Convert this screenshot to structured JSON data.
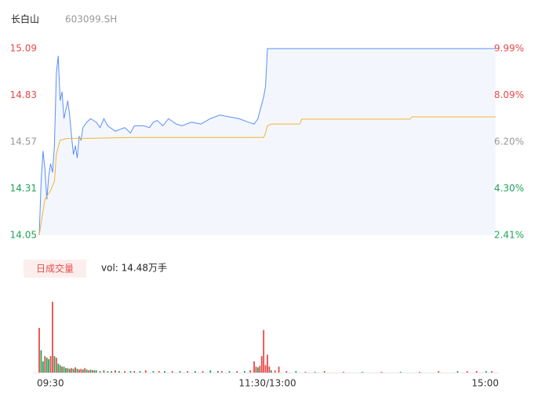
{
  "header": {
    "title": "长白山",
    "code": "603099.SH"
  },
  "chart_data": [
    {
      "type": "line",
      "xlim": [
        0,
        240
      ],
      "ylim": [
        14.05,
        15.09
      ],
      "yticks": [
        15.09,
        14.83,
        14.57,
        14.31,
        14.05
      ],
      "ytick_colors": [
        "#e84a4a",
        "#e84a4a",
        "#999999",
        "#22a35a",
        "#22a35a"
      ],
      "y2lim": [
        2.41,
        9.99
      ],
      "y2ticks": [
        {
          "value": 9.99,
          "label": "9.99%"
        },
        {
          "value": 8.09,
          "label": "8.09%"
        },
        {
          "value": 6.2,
          "label": "6.20%"
        },
        {
          "value": 4.3,
          "label": "4.30%"
        },
        {
          "value": 2.41,
          "label": "2.41%"
        }
      ],
      "y2tick_colors": [
        "#e84a4a",
        "#e84a4a",
        "#999999",
        "#22a35a",
        "#22a35a"
      ],
      "area_color": "#f3f7fd",
      "series": [
        {
          "color": "#5b8ff9",
          "x": [
            0,
            1,
            2,
            3,
            4,
            5,
            6,
            7,
            8,
            9,
            10,
            11,
            12,
            13,
            14,
            15,
            16,
            17,
            18,
            19,
            20,
            21,
            22,
            23,
            25,
            27,
            30,
            32,
            34,
            36,
            40,
            45,
            48,
            50,
            55,
            58,
            60,
            62,
            65,
            68,
            72,
            75,
            80,
            85,
            90,
            95,
            100,
            105,
            110,
            113,
            115,
            117,
            118,
            119,
            120,
            240
          ],
          "values": [
            14.05,
            14.35,
            14.52,
            14.42,
            14.25,
            14.38,
            14.45,
            14.4,
            14.55,
            14.95,
            15.05,
            14.8,
            14.85,
            14.7,
            14.75,
            14.8,
            14.72,
            14.6,
            14.5,
            14.55,
            14.48,
            14.6,
            14.58,
            14.65,
            14.68,
            14.7,
            14.68,
            14.65,
            14.7,
            14.66,
            14.63,
            14.65,
            14.62,
            14.66,
            14.66,
            14.65,
            14.68,
            14.69,
            14.66,
            14.7,
            14.67,
            14.66,
            14.68,
            14.67,
            14.7,
            14.72,
            14.71,
            14.7,
            14.68,
            14.67,
            14.7,
            14.78,
            14.82,
            14.88,
            15.09,
            15.09
          ]
        },
        {
          "color": "#f5b335",
          "x": [
            0,
            3,
            6,
            8,
            9,
            11,
            15,
            25,
            49,
            118,
            119,
            120,
            122,
            137,
            138,
            195,
            196,
            240
          ],
          "values": [
            14.05,
            14.25,
            14.3,
            14.35,
            14.5,
            14.58,
            14.59,
            14.59,
            14.595,
            14.595,
            14.62,
            14.66,
            14.67,
            14.67,
            14.697,
            14.697,
            14.71,
            14.71
          ]
        }
      ]
    },
    {
      "type": "bar",
      "label": "日成交量",
      "annotation": "vol: 14.48万手",
      "xlim": [
        0,
        240
      ],
      "ylim": [
        0,
        100
      ],
      "xticks": [
        {
          "value": 0,
          "label": "09:30"
        },
        {
          "value": 120,
          "label": "11:30/13:00"
        },
        {
          "value": 240,
          "label": "15:00"
        }
      ],
      "x": [
        0,
        1,
        2,
        3,
        4,
        5,
        6,
        7,
        8,
        9,
        10,
        11,
        12,
        13,
        14,
        15,
        16,
        17,
        18,
        19,
        20,
        21,
        22,
        23,
        24,
        25,
        26,
        27,
        28,
        29,
        30,
        32,
        34,
        36,
        38,
        40,
        42,
        45,
        48,
        50,
        53,
        56,
        60,
        63,
        66,
        70,
        74,
        78,
        82,
        86,
        90,
        94,
        96,
        100,
        104,
        108,
        111,
        113,
        114,
        115,
        116,
        117,
        118,
        119,
        120,
        121,
        122,
        124,
        126,
        130,
        135,
        140,
        145,
        150,
        160,
        170,
        180,
        190,
        200,
        210,
        220,
        225,
        230,
        235,
        238
      ],
      "values": [
        60,
        30,
        15,
        22,
        20,
        18,
        22,
        95,
        22,
        20,
        12,
        10,
        8,
        8,
        6,
        6,
        5,
        6,
        5,
        7,
        5,
        4,
        5,
        4,
        6,
        4,
        3,
        4,
        3,
        3,
        3,
        2,
        3,
        2,
        2,
        3,
        2,
        2,
        2,
        2,
        2,
        3,
        2,
        2,
        2,
        2,
        2,
        2,
        2,
        2,
        3,
        2,
        2,
        2,
        2,
        2,
        3,
        15,
        8,
        7,
        9,
        22,
        57,
        10,
        24,
        8,
        3,
        3,
        8,
        2,
        2,
        1,
        1,
        2,
        1,
        1,
        1,
        1,
        1,
        2,
        2,
        2,
        2,
        2,
        2
      ],
      "colors": [
        "#e84a4a",
        "#22a35a",
        "#22a35a",
        "#e84a4a",
        "#22a35a",
        "#22a35a",
        "#e84a4a",
        "#e84a4a",
        "#22a35a",
        "#e84a4a",
        "#22a35a",
        "#22a35a",
        "#e84a4a",
        "#22a35a",
        "#22a35a",
        "#e84a4a",
        "#22a35a",
        "#e84a4a",
        "#22a35a",
        "#e84a4a",
        "#22a35a",
        "#e84a4a",
        "#e84a4a",
        "#22a35a",
        "#e84a4a",
        "#22a35a",
        "#e84a4a",
        "#22a35a",
        "#e84a4a",
        "#22a35a",
        "#22a35a",
        "#e84a4a",
        "#22a35a",
        "#e84a4a",
        "#22a35a",
        "#e84a4a",
        "#22a35a",
        "#e84a4a",
        "#22a35a",
        "#e84a4a",
        "#22a35a",
        "#e84a4a",
        "#22a35a",
        "#e84a4a",
        "#22a35a",
        "#e84a4a",
        "#22a35a",
        "#e84a4a",
        "#22a35a",
        "#e84a4a",
        "#22a35a",
        "#22a35a",
        "#e84a4a",
        "#22a35a",
        "#e84a4a",
        "#22a35a",
        "#e84a4a",
        "#e84a4a",
        "#e84a4a",
        "#22a35a",
        "#e84a4a",
        "#e84a4a",
        "#e84a4a",
        "#e84a4a",
        "#e84a4a",
        "#e84a4a",
        "#22a35a",
        "#e84a4a",
        "#e84a4a",
        "#e84a4a",
        "#22a35a",
        "#e84a4a",
        "#22a35a",
        "#e84a4a",
        "#e84a4a",
        "#22a35a",
        "#e84a4a",
        "#22a35a",
        "#e84a4a",
        "#e84a4a",
        "#22a35a",
        "#e84a4a",
        "#e84a4a",
        "#22a35a",
        "#e84a4a"
      ]
    }
  ]
}
